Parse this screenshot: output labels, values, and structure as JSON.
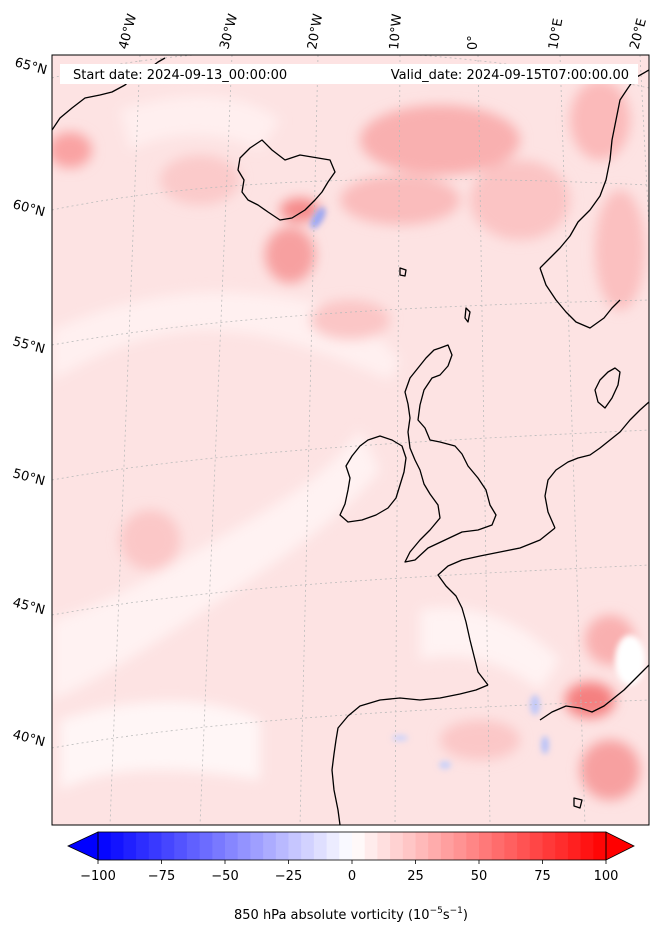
{
  "map": {
    "start_date_text": "Start date: 2024-09-13_00:00:00",
    "valid_date_text": "Valid_date: 2024-09-15T07:00:00.00",
    "lon_labels": [
      "40°W",
      "30°W",
      "20°W",
      "10°W",
      "0°",
      "10°E",
      "20°E"
    ],
    "lat_labels": [
      "65°N",
      "60°N",
      "55°N",
      "50°N",
      "45°N",
      "40°N"
    ],
    "projection": "polar stereographic style, curved graticule, dotted grid",
    "field": "850 hPa absolute vorticity"
  },
  "colorbar": {
    "ticks": [
      "−100",
      "−75",
      "−50",
      "−25",
      "0",
      "25",
      "50",
      "75",
      "100"
    ],
    "tick_values": [
      -100,
      -75,
      -50,
      -25,
      0,
      25,
      50,
      75,
      100
    ],
    "range": [
      -100,
      100
    ],
    "levels": 41,
    "extend": "both",
    "cmap": "bwr",
    "label_main": "850 hPa absolute vorticity (10",
    "label_exp1": "−5",
    "label_mid": "s",
    "label_exp2": "−1",
    "label_end": ")"
  },
  "colors": {
    "negative_max": "#0000ff",
    "neutral": "#ffffff",
    "positive_max": "#ff0000",
    "coastline": "#000000",
    "grid": "#bbbbbb"
  }
}
